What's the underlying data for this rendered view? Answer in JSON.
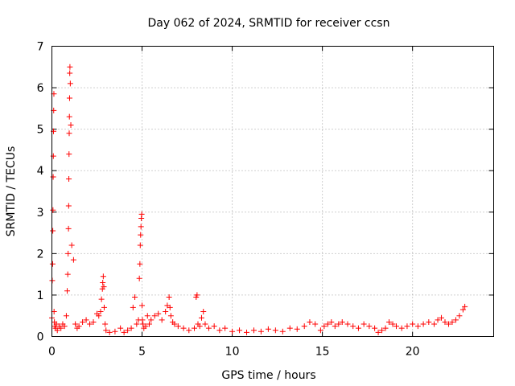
{
  "chart_data": {
    "type": "scatter",
    "title": "Day 062 of 2024, SRMTID for receiver ccsn",
    "xlabel": "GPS time / hours",
    "ylabel": "SRMTID / TECUs",
    "xlim": [
      0,
      24.5
    ],
    "ylim": [
      0,
      7
    ],
    "xticks": [
      "0",
      "5",
      "10",
      "15",
      "20"
    ],
    "xtick_values": [
      0,
      5,
      10,
      15,
      20
    ],
    "yticks": [
      "0",
      "1",
      "2",
      "3",
      "4",
      "5",
      "6",
      "7"
    ],
    "ytick_values": [
      0,
      1,
      2,
      3,
      4,
      5,
      6,
      7
    ],
    "grid": true,
    "marker": "plus",
    "marker_color": "#ff0000",
    "series": [
      {
        "name": "SRMTID",
        "x": [
          0.0,
          0.02,
          0.04,
          0.05,
          0.06,
          0.07,
          0.08,
          0.09,
          0.1,
          0.11,
          0.12,
          0.14,
          0.16,
          0.2,
          0.25,
          0.3,
          0.4,
          0.5,
          0.6,
          0.7,
          0.8,
          0.85,
          0.88,
          0.9,
          0.92,
          0.93,
          0.94,
          0.95,
          0.96,
          0.97,
          0.98,
          0.99,
          1.0,
          1.02,
          1.05,
          1.1,
          1.2,
          1.3,
          1.4,
          1.5,
          1.7,
          1.9,
          2.1,
          2.3,
          2.5,
          2.6,
          2.7,
          2.75,
          2.8,
          2.82,
          2.85,
          2.88,
          2.9,
          2.95,
          3.0,
          3.2,
          3.5,
          3.8,
          4.0,
          4.2,
          4.4,
          4.5,
          4.6,
          4.7,
          4.8,
          4.85,
          4.88,
          4.9,
          4.92,
          4.94,
          4.96,
          4.98,
          5.0,
          5.02,
          5.05,
          5.1,
          5.2,
          5.3,
          5.4,
          5.5,
          5.7,
          5.9,
          6.1,
          6.3,
          6.4,
          6.5,
          6.55,
          6.6,
          6.7,
          6.8,
          7.0,
          7.3,
          7.6,
          7.9,
          8.0,
          8.05,
          8.1,
          8.2,
          8.3,
          8.4,
          8.5,
          8.7,
          9.0,
          9.3,
          9.6,
          10.0,
          10.4,
          10.8,
          11.2,
          11.6,
          12.0,
          12.4,
          12.8,
          13.2,
          13.6,
          14.0,
          14.3,
          14.6,
          14.9,
          15.1,
          15.3,
          15.5,
          15.7,
          15.9,
          16.1,
          16.4,
          16.7,
          17.0,
          17.3,
          17.6,
          17.9,
          18.1,
          18.3,
          18.5,
          18.7,
          18.9,
          19.1,
          19.4,
          19.7,
          20.0,
          20.3,
          20.6,
          20.9,
          21.2,
          21.4,
          21.6,
          21.8,
          22.0,
          22.2,
          22.4,
          22.6,
          22.8,
          22.9
        ],
        "y": [
          0.45,
          1.35,
          1.75,
          2.55,
          3.05,
          3.85,
          4.35,
          4.95,
          5.45,
          5.85,
          0.6,
          0.35,
          0.25,
          0.2,
          0.3,
          0.15,
          0.25,
          0.2,
          0.3,
          0.25,
          0.5,
          1.1,
          1.5,
          2.0,
          2.6,
          3.15,
          3.8,
          4.4,
          4.9,
          5.3,
          5.75,
          6.35,
          6.5,
          6.1,
          5.1,
          2.2,
          1.85,
          0.3,
          0.2,
          0.25,
          0.35,
          0.4,
          0.3,
          0.35,
          0.55,
          0.5,
          0.6,
          0.9,
          1.15,
          1.3,
          1.45,
          1.2,
          0.7,
          0.3,
          0.15,
          0.1,
          0.12,
          0.2,
          0.1,
          0.15,
          0.2,
          0.7,
          0.95,
          0.3,
          0.4,
          1.4,
          1.75,
          2.2,
          2.45,
          2.65,
          2.85,
          2.95,
          0.75,
          0.4,
          0.3,
          0.2,
          0.25,
          0.5,
          0.3,
          0.4,
          0.5,
          0.55,
          0.4,
          0.6,
          0.75,
          0.95,
          0.7,
          0.5,
          0.35,
          0.3,
          0.25,
          0.2,
          0.15,
          0.2,
          0.95,
          1.0,
          0.3,
          0.25,
          0.45,
          0.6,
          0.3,
          0.2,
          0.25,
          0.15,
          0.2,
          0.12,
          0.15,
          0.1,
          0.15,
          0.12,
          0.18,
          0.15,
          0.12,
          0.2,
          0.18,
          0.25,
          0.35,
          0.3,
          0.15,
          0.25,
          0.3,
          0.35,
          0.25,
          0.3,
          0.35,
          0.3,
          0.25,
          0.2,
          0.3,
          0.25,
          0.2,
          0.1,
          0.15,
          0.2,
          0.35,
          0.3,
          0.25,
          0.2,
          0.25,
          0.3,
          0.25,
          0.3,
          0.35,
          0.3,
          0.4,
          0.45,
          0.35,
          0.3,
          0.35,
          0.4,
          0.5,
          0.65,
          0.72
        ]
      }
    ]
  }
}
